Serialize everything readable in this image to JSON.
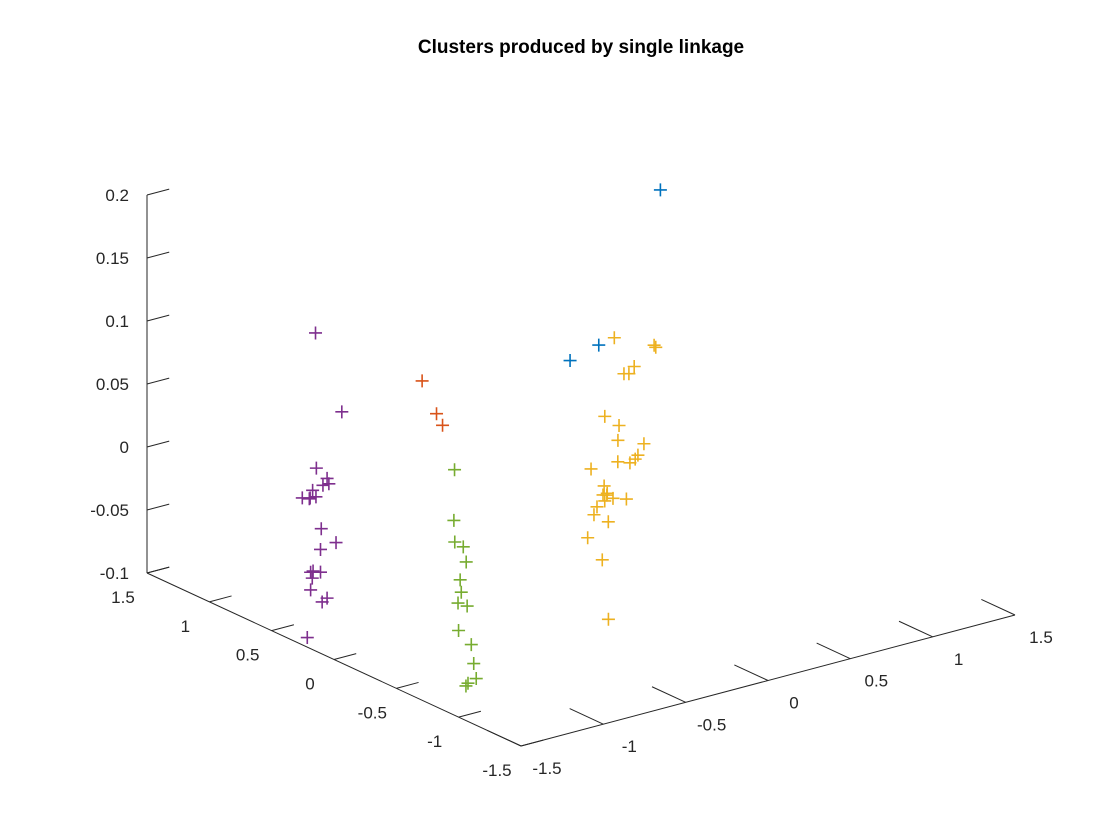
{
  "chart_data": {
    "type": "scatter",
    "title": "Clusters produced by single linkage",
    "marker": "+",
    "xlim": [
      -1.5,
      1.5
    ],
    "ylim": [
      -1.5,
      1.5
    ],
    "zlim": [
      -0.1,
      0.2
    ],
    "x_ticks": [
      "-1.5",
      "-1",
      "-0.5",
      "0",
      "0.5",
      "1",
      "1.5"
    ],
    "y_ticks": [
      "-1.5",
      "-1",
      "-0.5",
      "0",
      "0.5",
      "1",
      "1.5"
    ],
    "z_ticks": [
      "-0.1",
      "-0.05",
      "0",
      "0.05",
      "0.1",
      "0.15",
      "0.2"
    ],
    "grid": false,
    "colors": [
      "#0072BD",
      "#D95319",
      "#EDB120",
      "#7E2F8E",
      "#77AC30"
    ],
    "series": [
      {
        "color": "#0072BD",
        "points": [
          [
            1.05,
            0.75,
            0.15
          ],
          [
            0.35,
            0.55,
            0.048
          ],
          [
            0.6,
            0.65,
            0.047
          ]
        ]
      },
      {
        "color": "#D95319",
        "points": [
          [
            -0.98,
            -0.02,
            0.104
          ],
          [
            -0.62,
            0.34,
            0.049
          ],
          [
            -0.22,
            0.82,
            0.004
          ]
        ]
      },
      {
        "color": "#EDB120",
        "points": [
          [
            0.49,
            0.38,
            0.069
          ],
          [
            -0.14,
            -0.49,
            0.061
          ],
          [
            0.55,
            0.14,
            0.072
          ],
          [
            0.56,
            0.14,
            0.07
          ],
          [
            0.11,
            -0.15,
            0.008
          ],
          [
            0.3,
            0.1,
            0.007
          ],
          [
            0.7,
            0.58,
            0.024
          ],
          [
            0.8,
            0.63,
            0.024
          ],
          [
            0.73,
            0.58,
            0.023
          ],
          [
            0.47,
            0.43,
            0.005
          ],
          [
            0.42,
            0.12,
            -0.013
          ],
          [
            0.22,
            0.21,
            -0.018
          ],
          [
            0.27,
            0.1,
            -0.038
          ],
          [
            0.6,
            0.4,
            -0.035
          ],
          [
            0.2,
            -0.1,
            -0.027
          ],
          [
            0.48,
            0.53,
            -0.078
          ],
          [
            0.5,
            0.47,
            -0.065
          ],
          [
            0.5,
            0.45,
            -0.058
          ],
          [
            0.27,
            0.18,
            -0.039
          ],
          [
            0.21,
            0.07,
            -0.032
          ],
          [
            -0.02,
            -0.08,
            -0.051
          ],
          [
            0.8,
            0.6,
            -0.045
          ],
          [
            0.95,
            0.75,
            -0.048
          ],
          [
            0.22,
            0.12,
            -0.086
          ],
          [
            0.0,
            -0.22,
            -0.11
          ],
          [
            0.4,
            0.4,
            -0.063
          ],
          [
            0.34,
            0.23,
            -0.065
          ],
          [
            0.36,
            0.29,
            -0.04
          ]
        ]
      },
      {
        "color": "#7E2F8E",
        "points": [
          [
            -1.37,
            0.32,
            0.14
          ],
          [
            -1.18,
            0.36,
            0.069
          ],
          [
            -1.38,
            0.3,
            0.034
          ],
          [
            -1.41,
            0.16,
            0.029
          ],
          [
            -1.33,
            0.28,
            0.025
          ],
          [
            -1.34,
            0.3,
            0.019
          ],
          [
            -1.39,
            0.29,
            0.012
          ],
          [
            -1.42,
            0.36,
            0.009
          ],
          [
            -1.4,
            0.33,
            0.009
          ],
          [
            -1.38,
            0.33,
            0.015
          ],
          [
            -1.38,
            0.35,
            0.008
          ],
          [
            -1.32,
            0.34,
            -0.018
          ],
          [
            -1.2,
            0.38,
            -0.035
          ],
          [
            -1.37,
            0.28,
            -0.03
          ],
          [
            -1.4,
            0.3,
            -0.047
          ],
          [
            -1.43,
            0.28,
            -0.046
          ],
          [
            -1.37,
            0.28,
            -0.048
          ],
          [
            -1.42,
            0.28,
            -0.051
          ],
          [
            -1.43,
            0.28,
            -0.06
          ],
          [
            -1.36,
            0.28,
            -0.072
          ],
          [
            -1.33,
            0.28,
            -0.07
          ],
          [
            -1.42,
            0.32,
            -0.1
          ]
        ]
      },
      {
        "color": "#77AC30",
        "points": [
          [
            -0.45,
            0.42,
            -0.005
          ],
          [
            -0.56,
            0.28,
            -0.035
          ],
          [
            -0.6,
            0.22,
            -0.048
          ],
          [
            -0.45,
            0.35,
            -0.063
          ],
          [
            -0.47,
            0.3,
            -0.072
          ],
          [
            -0.59,
            0.19,
            -0.077
          ],
          [
            -0.54,
            0.2,
            -0.1
          ],
          [
            -0.5,
            0.3,
            -0.095
          ],
          [
            -0.55,
            0.26,
            -0.1
          ],
          [
            -0.63,
            0.15,
            -0.114
          ],
          [
            -0.53,
            0.18,
            -0.13
          ],
          [
            -0.5,
            0.2,
            -0.147
          ],
          [
            -0.55,
            0.18,
            -0.16
          ],
          [
            -0.57,
            0.17,
            -0.161
          ],
          [
            -0.5,
            0.18,
            -0.158
          ]
        ]
      }
    ]
  }
}
